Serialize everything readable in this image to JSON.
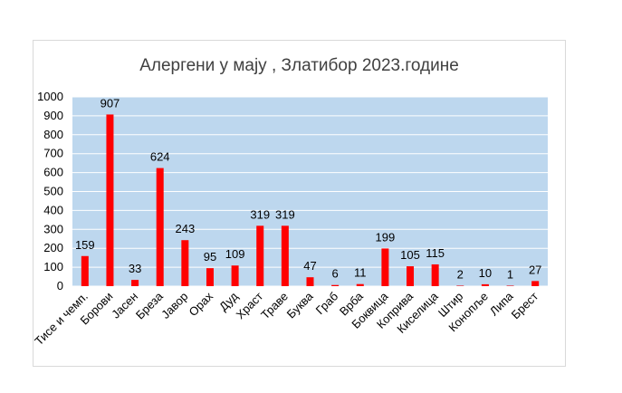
{
  "chart_data": {
    "type": "bar",
    "title": "Алергени у мају , Златибор 2023.године",
    "categories": [
      "Тисе и чемп.",
      "Борови",
      "Јасен",
      "Бреза",
      "Јавор",
      "Орах",
      "Дуд",
      "Храст",
      "Траве",
      "Буква",
      "Граб",
      "Врба",
      "Боквица",
      "Коприва",
      "Киселица",
      "Штир",
      "Конопље",
      "Липа",
      "Брест"
    ],
    "values": [
      159,
      907,
      33,
      624,
      243,
      95,
      109,
      319,
      319,
      47,
      6,
      11,
      199,
      105,
      115,
      2,
      10,
      1,
      27
    ],
    "ylim": [
      0,
      1000
    ],
    "yticks": [
      0,
      100,
      200,
      300,
      400,
      500,
      600,
      700,
      800,
      900,
      1000
    ],
    "xlabel": "",
    "ylabel": "",
    "grid": true,
    "legend": "none",
    "colors": {
      "bar": "#ff0000",
      "plot_bg": "#bdd7ee",
      "grid": "#ffffff",
      "title": "#404040"
    }
  }
}
